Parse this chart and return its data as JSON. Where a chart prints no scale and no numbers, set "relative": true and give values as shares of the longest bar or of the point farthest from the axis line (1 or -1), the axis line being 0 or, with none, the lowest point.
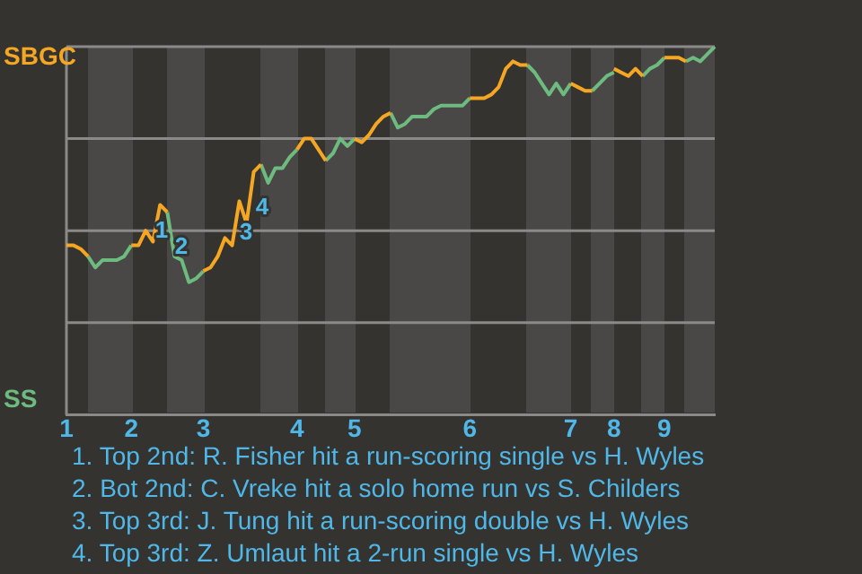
{
  "chart_data": {
    "type": "line",
    "relative": true,
    "grid": true,
    "legend": false,
    "categories": [
      "1",
      null,
      null,
      null,
      null,
      null,
      null,
      null,
      null,
      "2",
      null,
      null,
      null,
      null,
      null,
      null,
      null,
      null,
      null,
      "3",
      null,
      null,
      null,
      null,
      null,
      null,
      null,
      null,
      null,
      null,
      null,
      null,
      "4",
      null,
      null,
      null,
      null,
      null,
      null,
      null,
      "5",
      null,
      null,
      null,
      null,
      null,
      null,
      null,
      null,
      null,
      null,
      null,
      null,
      null,
      null,
      null,
      "6",
      null,
      null,
      null,
      null,
      null,
      null,
      null,
      null,
      null,
      null,
      null,
      null,
      null,
      "7",
      null,
      null,
      null,
      null,
      null,
      "8",
      null,
      null,
      null,
      null,
      null,
      null,
      "9",
      null,
      null,
      null,
      null,
      null,
      null,
      null
    ],
    "series": [
      {
        "color": "#f5a623",
        "values": [
          0.46,
          0.46,
          0.45,
          0.43,
          null,
          null,
          null,
          null,
          null,
          0.46,
          0.46,
          0.5,
          0.47,
          0.57,
          0.55,
          null,
          null,
          null,
          null,
          0.39,
          0.4,
          0.43,
          0.48,
          0.46,
          0.58,
          0.52,
          0.66,
          0.68,
          null,
          null,
          null,
          null,
          0.72,
          0.75,
          0.75,
          0.72,
          0.69,
          null,
          null,
          null,
          0.75,
          0.74,
          0.76,
          0.79,
          0.81,
          0.82,
          null,
          null,
          null,
          null,
          null,
          null,
          null,
          null,
          null,
          null,
          0.86,
          0.86,
          0.86,
          0.87,
          0.89,
          0.94,
          0.96,
          0.95,
          0.95,
          null,
          null,
          null,
          null,
          null,
          0.9,
          0.89,
          0.88,
          0.88,
          null,
          null,
          0.94,
          0.93,
          0.92,
          0.94,
          0.92,
          null,
          null,
          0.97,
          0.97,
          0.97,
          0.96,
          null,
          null,
          null,
          null
        ]
      },
      {
        "color": "#6dbb7f",
        "values": [
          null,
          null,
          null,
          0.43,
          0.4,
          0.42,
          0.42,
          0.42,
          0.43,
          0.46,
          null,
          null,
          null,
          null,
          0.55,
          0.43,
          0.42,
          0.36,
          0.37,
          0.39,
          null,
          null,
          null,
          null,
          null,
          null,
          null,
          0.68,
          0.63,
          0.67,
          0.67,
          0.7,
          0.72,
          null,
          null,
          null,
          0.69,
          0.71,
          0.75,
          0.73,
          0.75,
          null,
          null,
          null,
          null,
          0.82,
          0.78,
          0.79,
          0.81,
          0.81,
          0.81,
          0.83,
          0.84,
          0.84,
          0.84,
          0.84,
          0.86,
          null,
          null,
          null,
          null,
          null,
          null,
          null,
          0.95,
          0.93,
          0.9,
          0.87,
          0.9,
          0.87,
          0.9,
          null,
          null,
          0.88,
          0.9,
          0.92,
          0.93,
          null,
          null,
          null,
          0.92,
          0.94,
          0.95,
          0.97,
          null,
          null,
          0.96,
          0.97,
          0.96,
          0.98,
          1
        ]
      }
    ],
    "annotations": [
      "SBGC",
      "SS",
      "1",
      "2",
      "3",
      "4",
      "1. Top 2nd: R. Fisher hit a run-scoring single vs H. Wyles",
      "2. Bot 2nd: C. Vreke hit a solo home run vs S. Childers",
      "3. Top 3rd: J. Tung hit a run-scoring double vs H. Wyles",
      "4. Top 3rd: Z. Umlaut hit a 2-run single vs H. Wyles"
    ]
  }
}
